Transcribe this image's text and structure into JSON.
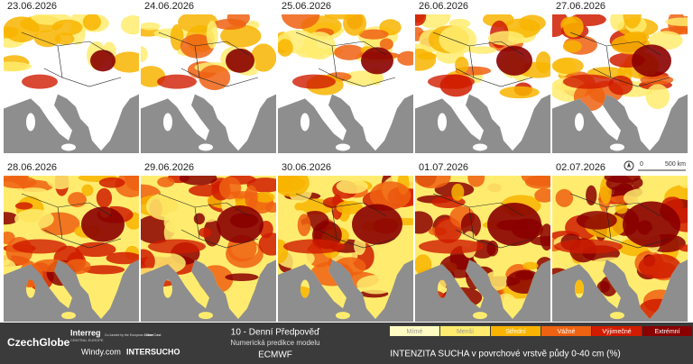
{
  "panels": [
    {
      "date": "23.06.2026"
    },
    {
      "date": "24.06.2026"
    },
    {
      "date": "25.06.2026"
    },
    {
      "date": "26.06.2026"
    },
    {
      "date": "27.06.2026"
    },
    {
      "date": "28.06.2026"
    },
    {
      "date": "29.06.2026"
    },
    {
      "date": "30.06.2026"
    },
    {
      "date": "01.07.2026"
    },
    {
      "date": "02.07.2026"
    }
  ],
  "scale": {
    "start": "0",
    "end": "500 km"
  },
  "footer": {
    "logos": [
      "CzechGlobe",
      "Interreg",
      "CENTRAL EUROPE",
      "Co-funded by the European Union",
      "ClimeCast",
      "Windy.com",
      "INTERSUCHO"
    ],
    "forecast_title": "10 - Denní Předpověď",
    "forecast_subtitle": "Numerická predikce modelu",
    "model": "ECMWF",
    "legend_title": "INTENZITA SUCHA v povrchové vrstvě půdy 0-40 cm (%)",
    "legend": [
      {
        "label": "Mírné",
        "color": "#fffbc2"
      },
      {
        "label": "Menší",
        "color": "#ffec6e"
      },
      {
        "label": "Střední",
        "color": "#f8b400"
      },
      {
        "label": "Vážné",
        "color": "#ee6212"
      },
      {
        "label": "Výjimečné",
        "color": "#d01c00"
      },
      {
        "label": "Extrémní",
        "color": "#8a0000"
      }
    ]
  }
}
